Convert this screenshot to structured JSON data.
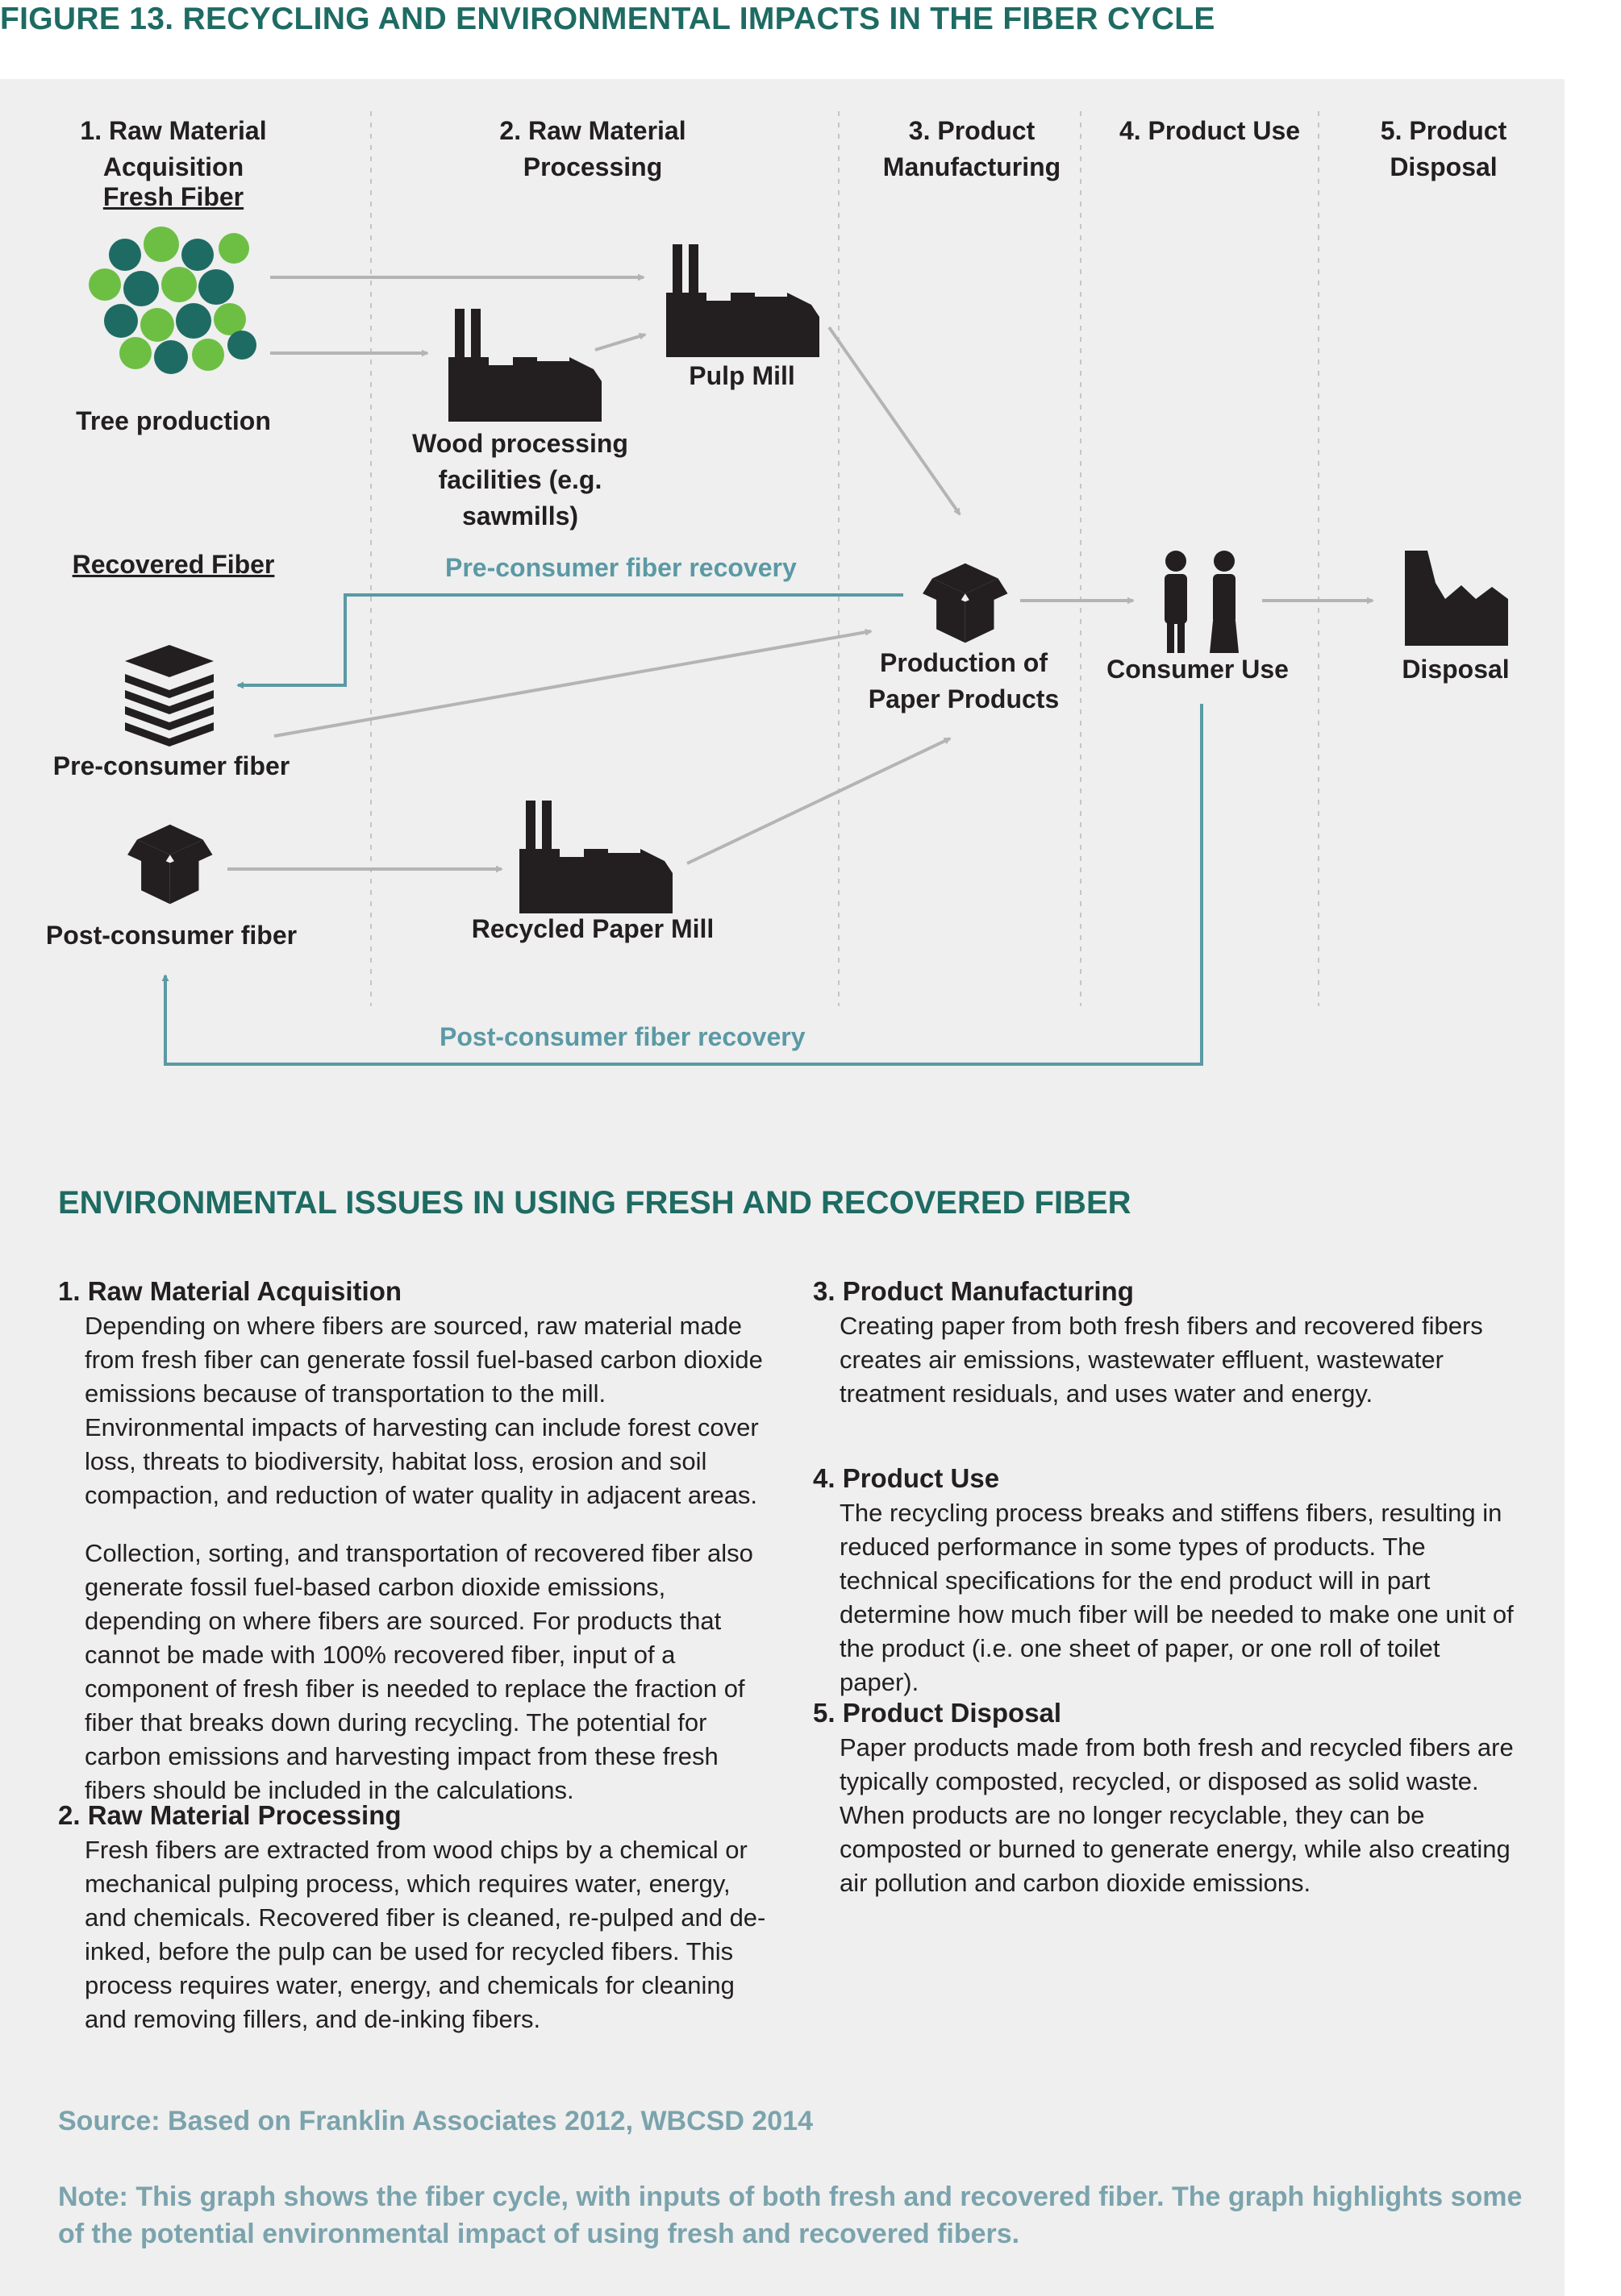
{
  "figure_title": "FIGURE 13. RECYCLING AND ENVIRONMENTAL IMPACTS IN THE FIBER CYCLE",
  "columns": [
    {
      "label": "1. Raw Material Acquisition"
    },
    {
      "label": "2. Raw Material Processing"
    },
    {
      "label": "3. Product Manufacturing"
    },
    {
      "label": "4. Product Use"
    },
    {
      "label": "5. Product Disposal"
    }
  ],
  "diagram": {
    "fresh_fiber": "Fresh Fiber",
    "tree_production": "Tree production",
    "pulp_mill": "Pulp Mill",
    "wood_processing": "Wood processing facilities (e.g. sawmills)",
    "recovered_fiber": "Recovered Fiber",
    "pre_consumer_recovery": "Pre-consumer fiber recovery",
    "pre_consumer_fiber": "Pre-consumer fiber",
    "post_consumer_fiber": "Post-consumer fiber",
    "recycled_paper_mill": "Recycled Paper Mill",
    "production_of_paper": "Production of Paper Products",
    "consumer_use": "Consumer Use",
    "disposal": "Disposal",
    "post_consumer_recovery": "Post-consumer fiber recovery",
    "line_color": "#b3b5b5",
    "recovery_color": "#5b99a5",
    "icon_color": "#231f20"
  },
  "issues": {
    "title": "ENVIRONMENTAL ISSUES IN USING FRESH AND RECOVERED FIBER",
    "sections": [
      {
        "heading": "1. Raw Material Acquisition",
        "paragraphs": [
          "Depending on where fibers are sourced, raw material made from fresh fiber can generate fossil fuel-based carbon dioxide emissions because of transportation to the mill. Environmental impacts of harvesting can include forest cover loss, threats to biodiversity, habitat loss, erosion and soil compaction, and reduction of water quality in adjacent areas.",
          "Collection, sorting, and transportation of recovered fiber also generate fossil fuel-based carbon dioxide emissions, depending on where fibers are sourced. For products that cannot be made with 100% recovered fiber, input of a component of fresh fiber is needed to replace the fraction of fiber that breaks down during recycling. The potential for carbon emissions and harvesting impact from these fresh fibers should be included in the calculations."
        ]
      },
      {
        "heading": "2. Raw Material Processing",
        "paragraphs": [
          "Fresh fibers are extracted from wood chips by a chemical or mechanical pulping process, which requires water, energy, and chemicals. Recovered fiber is cleaned, re-pulped and de-inked, before the pulp can be used for recycled fibers. This process requires water, energy, and chemicals for cleaning and removing fillers, and de-inking fibers."
        ]
      },
      {
        "heading": "3. Product Manufacturing",
        "paragraphs": [
          "Creating paper from both fresh fibers and recovered fibers creates air emissions, wastewater effluent, wastewater treatment residuals, and uses water and energy."
        ]
      },
      {
        "heading": "4. Product Use",
        "paragraphs": [
          "The recycling process breaks and stiffens fibers, resulting in reduced performance in some types of products. The technical specifications for the end product will in part determine how much fiber will be needed to make one unit of the product (i.e. one sheet of paper, or one roll of toilet paper)."
        ]
      },
      {
        "heading": "5. Product Disposal",
        "paragraphs": [
          "Paper products made from both fresh and recycled fibers are typically composted, recycled, or disposed as solid waste. When products are no longer recyclable, they can be composted or burned to generate energy, while also creating air pollution and carbon dioxide emissions."
        ]
      }
    ]
  },
  "source": "Source: Based on Franklin Associates 2012, WBCSD 2014",
  "note": "Note: This graph shows the fiber cycle, with inputs of both fresh and recovered fiber. The graph highlights some of the potential environmental impact of using fresh and recovered fibers."
}
